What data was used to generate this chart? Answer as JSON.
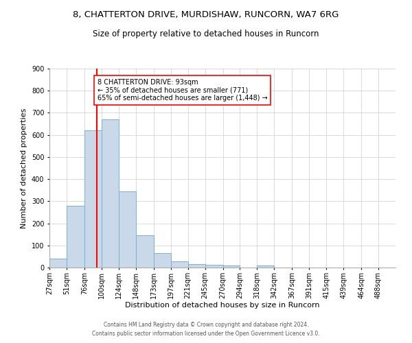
{
  "title1": "8, CHATTERTON DRIVE, MURDISHAW, RUNCORN, WA7 6RG",
  "title2": "Size of property relative to detached houses in Runcorn",
  "xlabel": "Distribution of detached houses by size in Runcorn",
  "ylabel": "Number of detached properties",
  "footnote1": "Contains HM Land Registry data © Crown copyright and database right 2024.",
  "footnote2": "Contains public sector information licensed under the Open Government Licence v3.0.",
  "bar_edges": [
    27,
    51,
    76,
    100,
    124,
    148,
    173,
    197,
    221,
    245,
    270,
    294,
    318,
    342,
    367,
    391,
    415,
    439,
    464,
    488,
    512
  ],
  "bar_heights": [
    40,
    278,
    620,
    670,
    345,
    147,
    65,
    28,
    14,
    13,
    10,
    0,
    10,
    0,
    0,
    0,
    0,
    0,
    0,
    0
  ],
  "bar_color": "#c9d9ea",
  "bar_edgecolor": "#7aafd4",
  "grid_color": "#cccccc",
  "vline_x": 93,
  "vline_color": "red",
  "annotation_text": "8 CHATTERTON DRIVE: 93sqm\n← 35% of detached houses are smaller (771)\n65% of semi-detached houses are larger (1,448) →",
  "annotation_box_color": "white",
  "annotation_box_edgecolor": "red",
  "ylim": [
    0,
    900
  ],
  "yticks": [
    0,
    100,
    200,
    300,
    400,
    500,
    600,
    700,
    800,
    900
  ],
  "bg_color": "white",
  "title1_fontsize": 9.5,
  "title2_fontsize": 8.5,
  "xlabel_fontsize": 8,
  "ylabel_fontsize": 8,
  "footnote_fontsize": 5.5,
  "annotation_fontsize": 7,
  "tick_fontsize": 7
}
